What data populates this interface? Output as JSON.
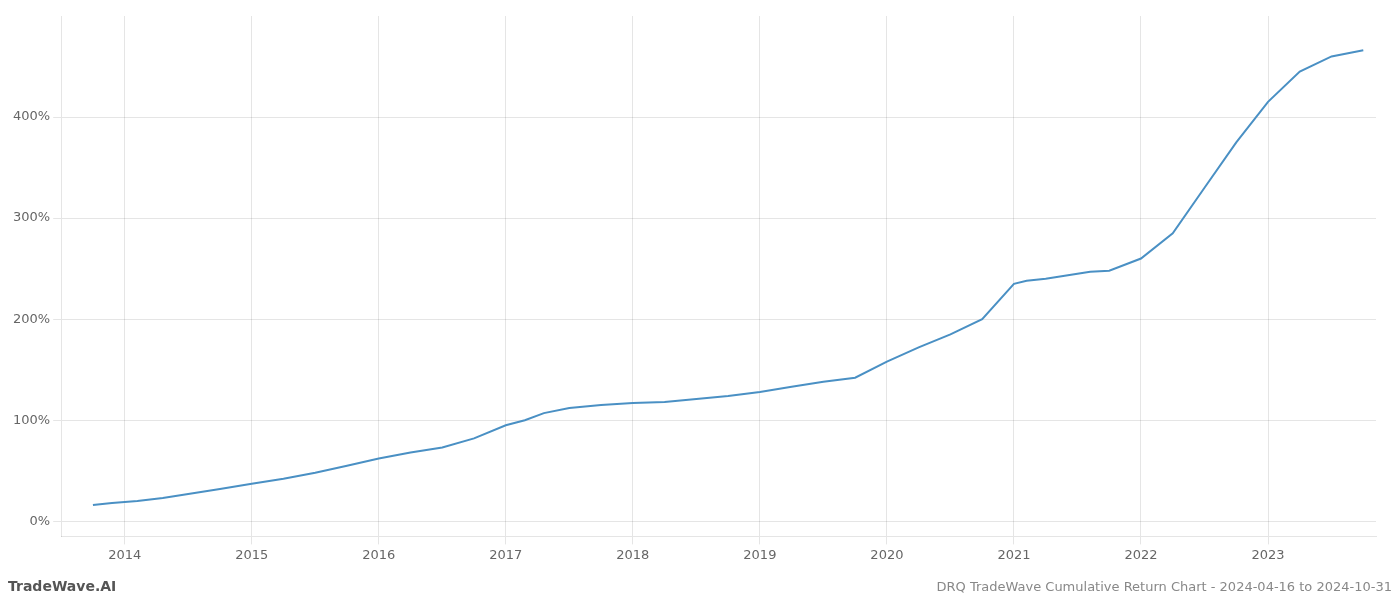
{
  "chart_data": {
    "type": "line",
    "title": "DRQ TradeWave Cumulative Return Chart - 2024-04-16 to 2024-10-31",
    "annotations": [
      "TradeWave.AI"
    ],
    "color": "#4a90c4",
    "x": [
      2013.75,
      2013.9,
      2014.1,
      2014.3,
      2014.5,
      2014.75,
      2015.0,
      2015.25,
      2015.5,
      2015.75,
      2016.0,
      2016.25,
      2016.5,
      2016.75,
      2017.0,
      2017.15,
      2017.3,
      2017.5,
      2017.75,
      2018.0,
      2018.25,
      2018.5,
      2018.75,
      2019.0,
      2019.25,
      2019.5,
      2019.75,
      2020.0,
      2020.25,
      2020.5,
      2020.75,
      2021.0,
      2021.1,
      2021.25,
      2021.4,
      2021.5,
      2021.6,
      2021.75,
      2022.0,
      2022.25,
      2022.5,
      2022.75,
      2023.0,
      2023.25,
      2023.5,
      2023.75
    ],
    "values": [
      16,
      18,
      20,
      23,
      27,
      32,
      37,
      42,
      48,
      55,
      62,
      68,
      73,
      82,
      95,
      100,
      107,
      112,
      115,
      117,
      118,
      121,
      124,
      128,
      133,
      138,
      142,
      158,
      172,
      185,
      200,
      235,
      238,
      240,
      243,
      245,
      247,
      248,
      260,
      285,
      330,
      375,
      415,
      445,
      460,
      466
    ],
    "xlim": [
      2013.5,
      2023.85
    ],
    "xticks": [
      2014,
      2015,
      2016,
      2017,
      2018,
      2019,
      2020,
      2021,
      2022,
      2023
    ],
    "ylim": [
      -15,
      500
    ],
    "yticks": [
      {
        "value": 0,
        "label": "0%"
      },
      {
        "value": 100,
        "label": "100%"
      },
      {
        "value": 200,
        "label": "200%"
      },
      {
        "value": 300,
        "label": "300%"
      },
      {
        "value": 400,
        "label": "400%"
      }
    ],
    "grid": true
  }
}
